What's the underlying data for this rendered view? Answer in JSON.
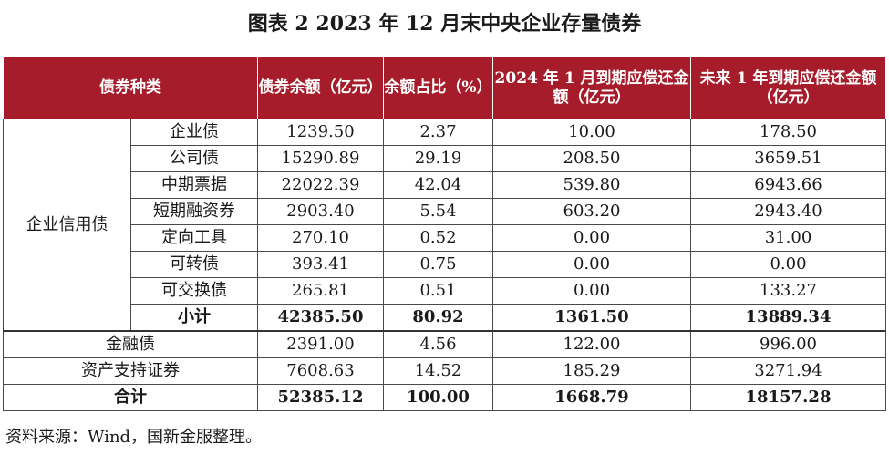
{
  "title": "图表 2  2023 年 12 月末中央企业存量债券",
  "headers": {
    "type": "债券种类",
    "balance": "债券余额（亿元）",
    "ratio": "余额占比（%）",
    "jan": "2024 年 1 月到期应偿还金额（亿元）",
    "year": "未来 1 年到期应偿还金额（亿元）"
  },
  "group_label": "企业信用债",
  "rows": [
    {
      "name": "企业债",
      "balance": "1239.50",
      "ratio": "2.37",
      "jan": "10.00",
      "year": "178.50"
    },
    {
      "name": "公司债",
      "balance": "15290.89",
      "ratio": "29.19",
      "jan": "208.50",
      "year": "3659.51"
    },
    {
      "name": "中期票据",
      "balance": "22022.39",
      "ratio": "42.04",
      "jan": "539.80",
      "year": "6943.66"
    },
    {
      "name": "短期融资券",
      "balance": "2903.40",
      "ratio": "5.54",
      "jan": "603.20",
      "year": "2943.40"
    },
    {
      "name": "定向工具",
      "balance": "270.10",
      "ratio": "0.52",
      "jan": "0.00",
      "year": "31.00"
    },
    {
      "name": "可转债",
      "balance": "393.41",
      "ratio": "0.75",
      "jan": "0.00",
      "year": "0.00"
    },
    {
      "name": "可交换债",
      "balance": "265.81",
      "ratio": "0.51",
      "jan": "0.00",
      "year": "133.27"
    }
  ],
  "subtotal": {
    "name": "小计",
    "balance": "42385.50",
    "ratio": "80.92",
    "jan": "1361.50",
    "year": "13889.34"
  },
  "other_rows": [
    {
      "name": "金融债",
      "balance": "2391.00",
      "ratio": "4.56",
      "jan": "122.00",
      "year": "996.00"
    },
    {
      "name": "资产支持证券",
      "balance": "7608.63",
      "ratio": "14.52",
      "jan": "185.29",
      "year": "3271.94"
    }
  ],
  "total": {
    "name": "合计",
    "balance": "52385.12",
    "ratio": "100.00",
    "jan": "1668.79",
    "year": "18157.28"
  },
  "source": "资料来源：Wind，国新金服整理。"
}
